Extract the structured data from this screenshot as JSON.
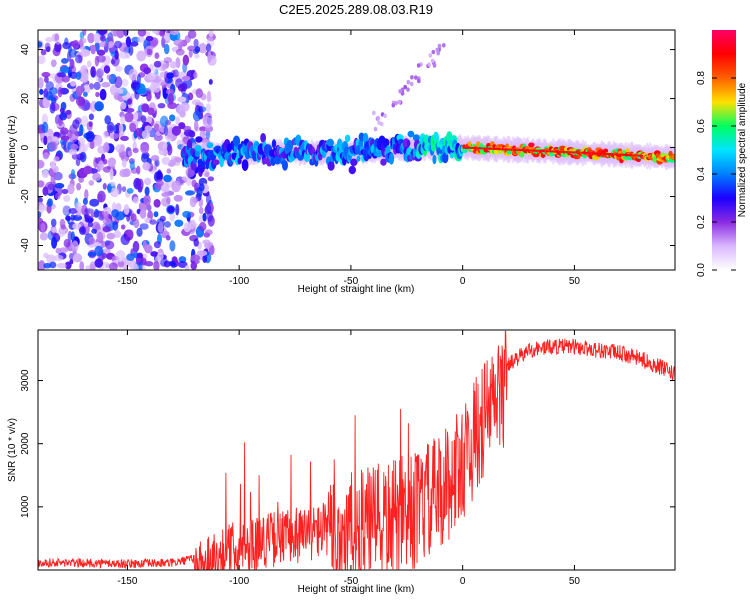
{
  "title": "C2E5.2025.289.08.03.R19",
  "chart_data": [
    {
      "type": "heatmap",
      "title": "C2E5.2025.289.08.03.R19",
      "xlabel": "Height of straight line (km)",
      "ylabel": "Frequency (Hz)",
      "xlim": [
        -190,
        95
      ],
      "ylim": [
        -50,
        48
      ],
      "xticks": [
        -150,
        -100,
        -50,
        0,
        50
      ],
      "yticks": [
        -40,
        -20,
        0,
        20,
        40
      ],
      "colorbar": {
        "label": "Normalized spectral amplitude",
        "range": [
          0,
          1
        ],
        "ticks": [
          0.0,
          0.2,
          0.4,
          0.6,
          0.8
        ],
        "colors": [
          "#ffffff",
          "#d9b8ff",
          "#8a2be2",
          "#1a00ff",
          "#0080ff",
          "#00e5ff",
          "#00ff60",
          "#ffe000",
          "#ff6000",
          "#ff0000",
          "#ff0066"
        ]
      },
      "band": {
        "center_hz": [
          [
            -125,
            -3
          ],
          [
            -100,
            -2
          ],
          [
            -50,
            -2
          ],
          [
            -20,
            0
          ],
          [
            0,
            0
          ],
          [
            50,
            -2
          ],
          [
            95,
            -4
          ]
        ],
        "noise_region_x": [
          -190,
          -120
        ]
      }
    },
    {
      "type": "line",
      "xlabel": "Height of straight line (km)",
      "ylabel": "SNR (10 * v/v)",
      "xlim": [
        -190,
        95
      ],
      "ylim": [
        0,
        3800
      ],
      "xticks": [
        -150,
        -100,
        -50,
        0,
        50
      ],
      "yticks": [
        1000,
        2000,
        3000
      ],
      "color": "#ff2020",
      "series": [
        {
          "name": "SNR",
          "x": [
            -190,
            -170,
            -150,
            -130,
            -120,
            -110,
            -100,
            -90,
            -80,
            -70,
            -60,
            -50,
            -40,
            -30,
            -20,
            -10,
            0,
            10,
            20,
            30,
            40,
            50,
            60,
            70,
            80,
            90,
            95
          ],
          "y": [
            120,
            110,
            100,
            110,
            180,
            350,
            500,
            600,
            650,
            700,
            800,
            900,
            1000,
            1100,
            1250,
            1500,
            2000,
            2700,
            3250,
            3500,
            3550,
            3550,
            3500,
            3450,
            3350,
            3200,
            3100
          ]
        }
      ]
    }
  ]
}
